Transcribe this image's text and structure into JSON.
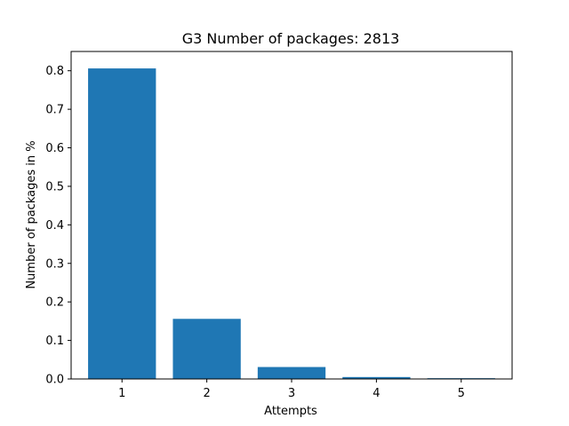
{
  "chart_data": {
    "type": "bar",
    "title": "G3  Number of packages: 2813",
    "xlabel": "Attempts",
    "ylabel": "Number of packages in %",
    "categories": [
      "1",
      "2",
      "3",
      "4",
      "5"
    ],
    "values": [
      0.806,
      0.156,
      0.031,
      0.005,
      0.002
    ],
    "ylim": [
      0,
      0.85
    ],
    "yticks": [
      "0.0",
      "0.1",
      "0.2",
      "0.3",
      "0.4",
      "0.5",
      "0.6",
      "0.7",
      "0.8"
    ],
    "bar_color": "#1f77b4",
    "grid": false,
    "legend": "none"
  }
}
